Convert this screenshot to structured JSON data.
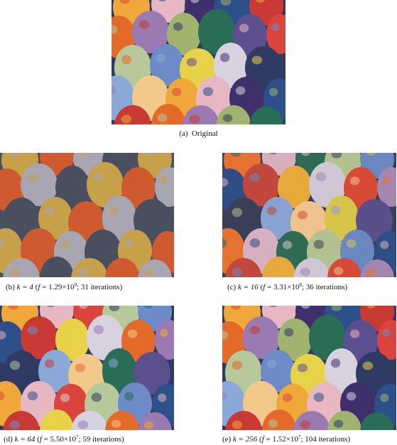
{
  "figure": {
    "panels": [
      {
        "id": "a",
        "label": "(a)",
        "caption": "Original",
        "palette": [
          "#2f3b63",
          "#d9453c",
          "#e46a2a",
          "#f0a83a",
          "#e8d24a",
          "#2a6d57",
          "#2d4f8a",
          "#8aa8d8",
          "#b7c89a",
          "#9a7ab0",
          "#e7b7c3",
          "#d7d2e0",
          "#5c4f8f",
          "#c93a35",
          "#f2c98a",
          "#6d8cc7",
          "#a0b36f",
          "#3f2f6a"
        ]
      },
      {
        "id": "b",
        "label": "(b)",
        "k_text": "k = 4",
        "f_mantissa": "1.29",
        "f_exponent": "9",
        "iterations_text": "31 iterations",
        "palette": [
          "#4a4f5f",
          "#a8a6b3",
          "#cf5a2f",
          "#c7a04a"
        ]
      },
      {
        "id": "c",
        "label": "(c)",
        "k_text": "k = 16",
        "f_mantissa": "3.31",
        "f_exponent": "8",
        "iterations_text": "36 iterations",
        "palette": [
          "#3a3f58",
          "#2f6a55",
          "#d74a36",
          "#e5722f",
          "#e7a93b",
          "#d9c44b",
          "#2f4e86",
          "#8aa2cf",
          "#b3c08f",
          "#a387b1",
          "#d6b0bf",
          "#cfc7d5",
          "#5a4f8b",
          "#c2473d",
          "#efc38b",
          "#6b87c0"
        ]
      },
      {
        "id": "d",
        "label": "(d)",
        "k_text": "k = 64",
        "f_mantissa": "5.50",
        "f_exponent": "7",
        "iterations_text": "59 iterations",
        "palette": [
          "#2f3b63",
          "#d9453c",
          "#e46a2a",
          "#f0a83a",
          "#e8d24a",
          "#2a6d57",
          "#2d4f8a",
          "#8aa8d8",
          "#b7c89a",
          "#9a7ab0",
          "#e7b7c3",
          "#d7d2e0",
          "#5c4f8f",
          "#c93a35",
          "#f2c98a",
          "#6d8cc7"
        ]
      },
      {
        "id": "e",
        "label": "(e)",
        "k_text": "k = 256",
        "f_mantissa": "1.52",
        "f_exponent": "7",
        "iterations_text": "104 iterations",
        "palette": [
          "#2f3b63",
          "#d9453c",
          "#e46a2a",
          "#f0a83a",
          "#e8d24a",
          "#2a6d57",
          "#2d4f8a",
          "#8aa8d8",
          "#b7c89a",
          "#9a7ab0",
          "#e7b7c3",
          "#d7d2e0",
          "#5c4f8f",
          "#c93a35",
          "#f2c98a",
          "#6d8cc7",
          "#a0b36f",
          "#3f2f6a"
        ]
      }
    ]
  }
}
